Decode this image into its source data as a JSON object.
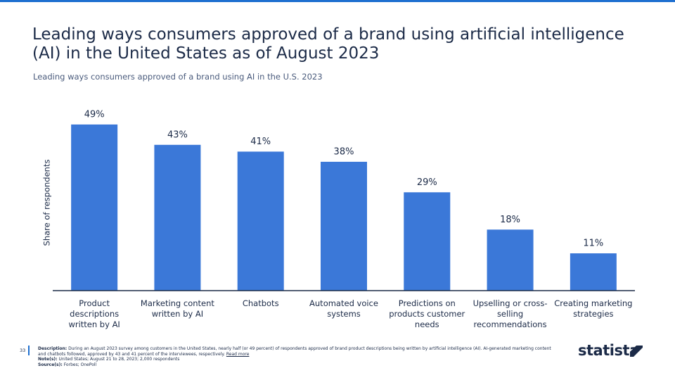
{
  "chart_data": {
    "type": "bar",
    "title": "Leading ways consumers approved of a brand using artificial intelligence (AI) in the United States as of August 2023",
    "subtitle": "Leading ways consumers approved of a brand using AI in the U.S. 2023",
    "y_label": "Share of respondents",
    "categories": [
      "Product descriptions written by AI",
      "Marketing content written by AI",
      "Chatbots",
      "Automated voice systems",
      "Predictions on products customer needs",
      "Upselling or cross-selling recommendations",
      "Creating marketing strategies"
    ],
    "values": [
      49,
      43,
      41,
      38,
      29,
      18,
      11
    ],
    "value_labels": [
      "49%",
      "43%",
      "41%",
      "38%",
      "29%",
      "18%",
      "11%"
    ],
    "color": "#3b78d8",
    "ylim": [
      0,
      55
    ]
  },
  "footer": {
    "page_number": "33",
    "description_label": "Description:",
    "description": "During an August 2023 survey among customers in the United States, nearly half (or 49 percent) of respondents approved of brand product descriptions being written by artificial intelligence (AI). AI-generated marketing content and chatbots followed, approved by 43 and 41 percent of the interviewees, respectively.",
    "read_more": "Read more",
    "note_label": "Note(s):",
    "note": "United States; August 21 to 28, 2023; 2,000 respondents",
    "source_label": "Source(s):",
    "source": "Forbes; OnePoll",
    "brand": "statista"
  }
}
